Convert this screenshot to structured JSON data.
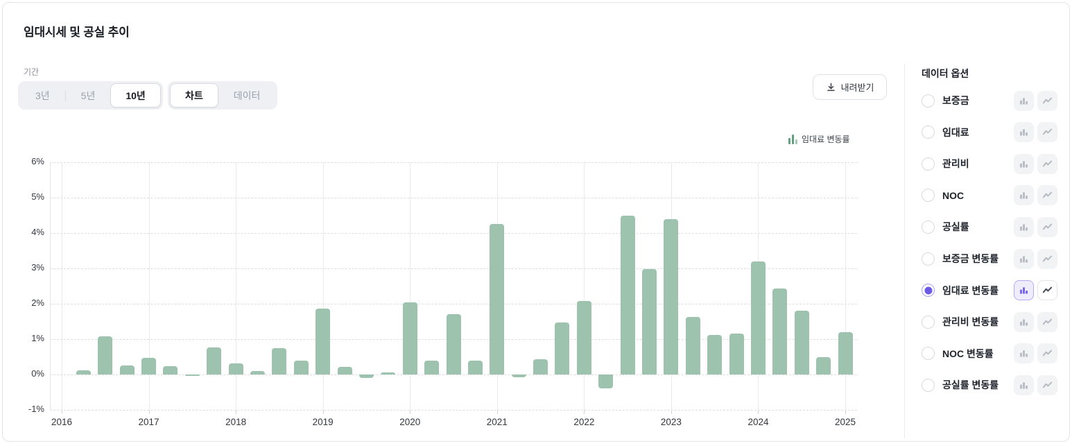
{
  "card": {
    "title": "임대시세 및 공실 추이"
  },
  "controls": {
    "period_label": "기간",
    "period_options": [
      {
        "label": "3년",
        "selected": false
      },
      {
        "label": "5년",
        "selected": false
      },
      {
        "label": "10년",
        "selected": true
      }
    ],
    "view_options": [
      {
        "label": "차트",
        "selected": true
      },
      {
        "label": "데이터",
        "selected": false
      }
    ],
    "download_label": "내려받기"
  },
  "legend": {
    "label": "임대료 변동률"
  },
  "chart_data": {
    "type": "bar",
    "title": "임대료 변동률",
    "categories": [
      "2016 Q1",
      "2016 Q2",
      "2016 Q3",
      "2016 Q4",
      "2017 Q1",
      "2017 Q2",
      "2017 Q3",
      "2017 Q4",
      "2018 Q1",
      "2018 Q2",
      "2018 Q3",
      "2018 Q4",
      "2019 Q1",
      "2019 Q2",
      "2019 Q3",
      "2019 Q4",
      "2020 Q1",
      "2020 Q2",
      "2020 Q3",
      "2020 Q4",
      "2021 Q1",
      "2021 Q2",
      "2021 Q3",
      "2021 Q4",
      "2022 Q1",
      "2022 Q2",
      "2022 Q3",
      "2022 Q4",
      "2023 Q1",
      "2023 Q2",
      "2023 Q3",
      "2023 Q4",
      "2024 Q1",
      "2024 Q2",
      "2024 Q3",
      "2024 Q4"
    ],
    "values": [
      0.11,
      1.07,
      0.26,
      0.47,
      0.23,
      -0.04,
      0.76,
      0.32,
      0.1,
      0.75,
      0.4,
      1.87,
      0.22,
      -0.09,
      0.06,
      2.03,
      0.39,
      1.7,
      0.4,
      4.25,
      -0.08,
      0.43,
      1.48,
      2.07,
      -0.4,
      4.5,
      2.99,
      4.39,
      1.62,
      1.11,
      1.16,
      3.2,
      2.43,
      1.8,
      0.49,
      1.19
    ],
    "unit": "%",
    "x_tick_labels": [
      "2016",
      "2017",
      "2018",
      "2019",
      "2020",
      "2021",
      "2022",
      "2023",
      "2024",
      "2025"
    ],
    "y_tick_labels": [
      "6%",
      "5%",
      "4%",
      "3%",
      "2%",
      "1%",
      "0%",
      "-1%"
    ],
    "y_tick_values": [
      6,
      5,
      4,
      3,
      2,
      1,
      0,
      -1
    ],
    "ylim": [
      -1,
      6
    ],
    "grid": true,
    "legend_position": "top-right",
    "bar_color": "#9dc2ad"
  },
  "sidebar": {
    "title": "데이터 옵션",
    "items": [
      {
        "label": "보증금",
        "selected": false
      },
      {
        "label": "임대료",
        "selected": false
      },
      {
        "label": "관리비",
        "selected": false
      },
      {
        "label": "NOC",
        "selected": false
      },
      {
        "label": "공실률",
        "selected": false
      },
      {
        "label": "보증금 변동률",
        "selected": false
      },
      {
        "label": "임대료 변동률",
        "selected": true,
        "active_view": "bar"
      },
      {
        "label": "관리비 변동률",
        "selected": false
      },
      {
        "label": "NOC 변동률",
        "selected": false
      },
      {
        "label": "공실률 변동률",
        "selected": false
      }
    ]
  },
  "colors": {
    "bar_green": "#9dc2ad",
    "legend_green_dark": "#649f82",
    "legend_green_light": "#a7cab6",
    "accent_purple": "#6a5ae4",
    "accent_purple_bg": "#efecfd",
    "accent_purple_border": "#b5a9f6"
  }
}
